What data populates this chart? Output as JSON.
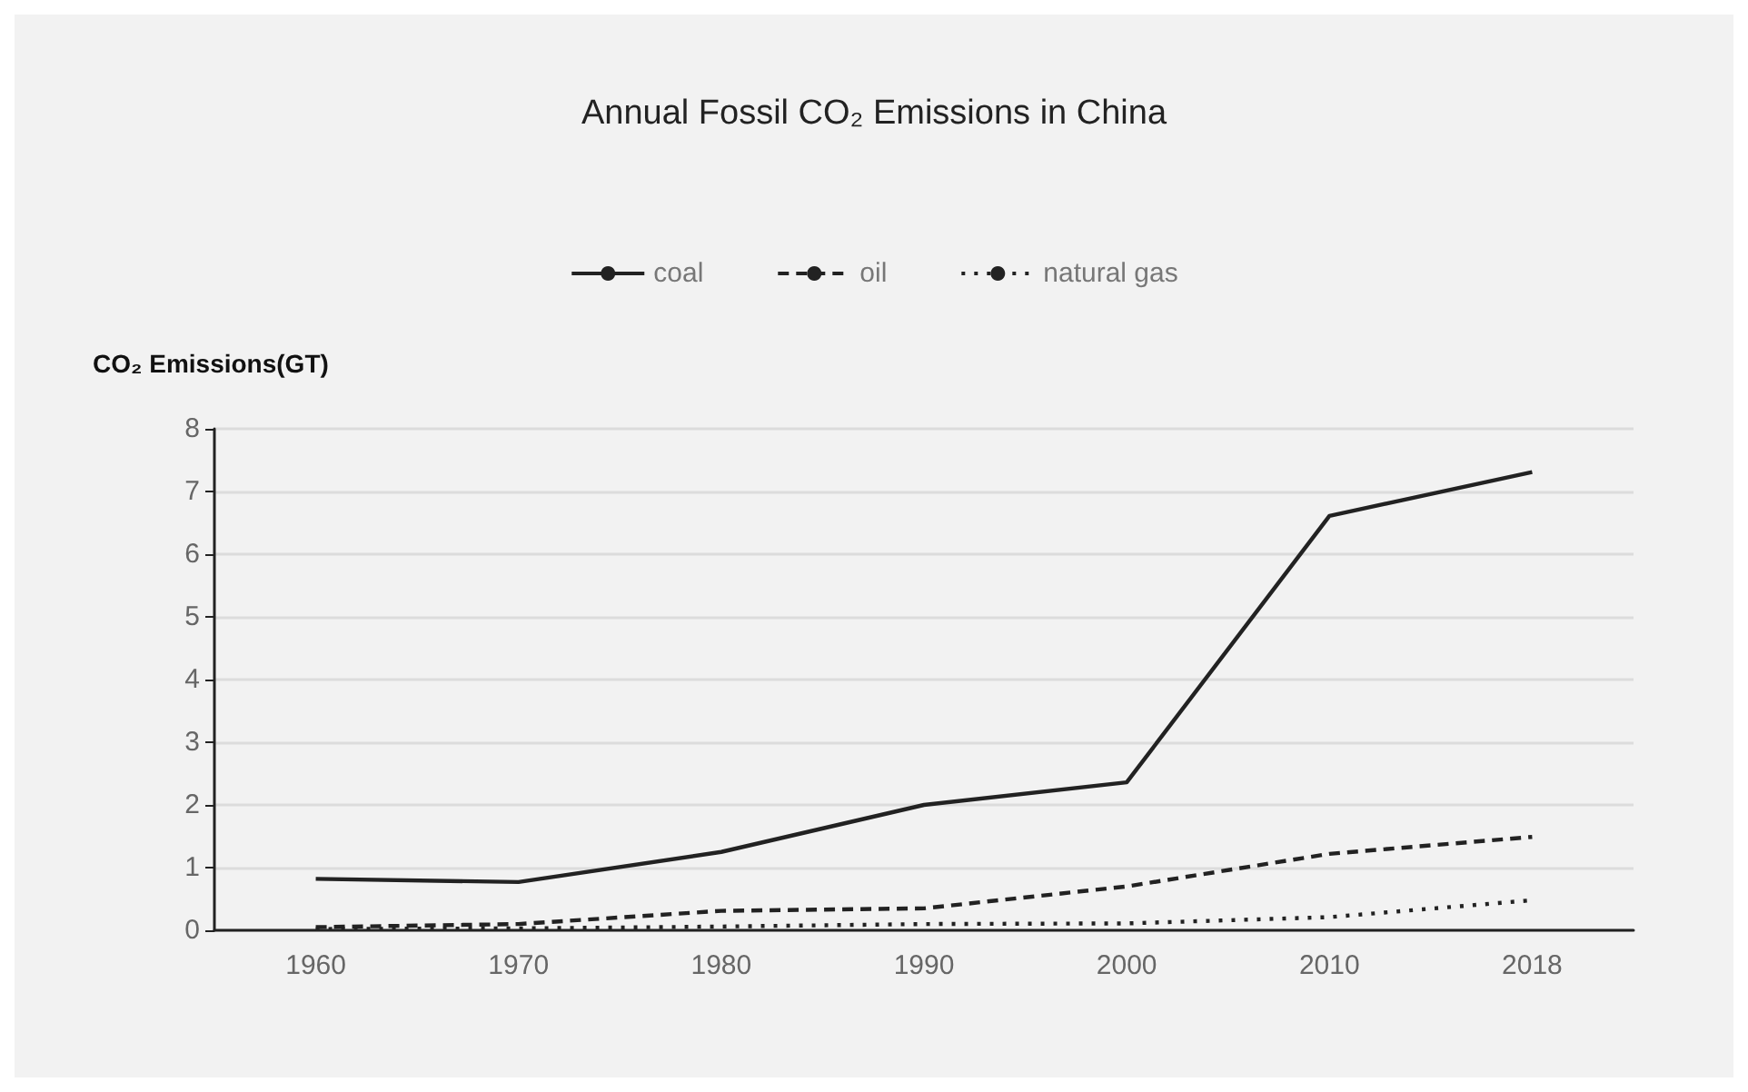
{
  "chart_data": {
    "type": "line",
    "title": "Annual Fossil CO₂ Emissions in China",
    "ylabel": "CO₂ Emissions(GT)",
    "categories": [
      "1960",
      "1970",
      "1980",
      "1990",
      "2000",
      "2010",
      "2018"
    ],
    "series": [
      {
        "name": "coal",
        "color": "#222222",
        "line_style": "solid",
        "values": [
          0.82,
          0.77,
          1.25,
          2.0,
          2.36,
          6.61,
          7.31
        ]
      },
      {
        "name": "oil",
        "color": "#222222",
        "line_style": "dashed",
        "values": [
          0.05,
          0.1,
          0.31,
          0.35,
          0.7,
          1.22,
          1.49
        ]
      },
      {
        "name": "natural gas",
        "color": "#222222",
        "line_style": "dotted",
        "values": [
          0.02,
          0.03,
          0.06,
          0.1,
          0.11,
          0.21,
          0.48
        ]
      }
    ],
    "ylim": [
      0,
      8
    ],
    "yticks": [
      0,
      1,
      2,
      3,
      4,
      5,
      6,
      7,
      8
    ],
    "grid": "y",
    "legend": "top",
    "marker": "none"
  }
}
